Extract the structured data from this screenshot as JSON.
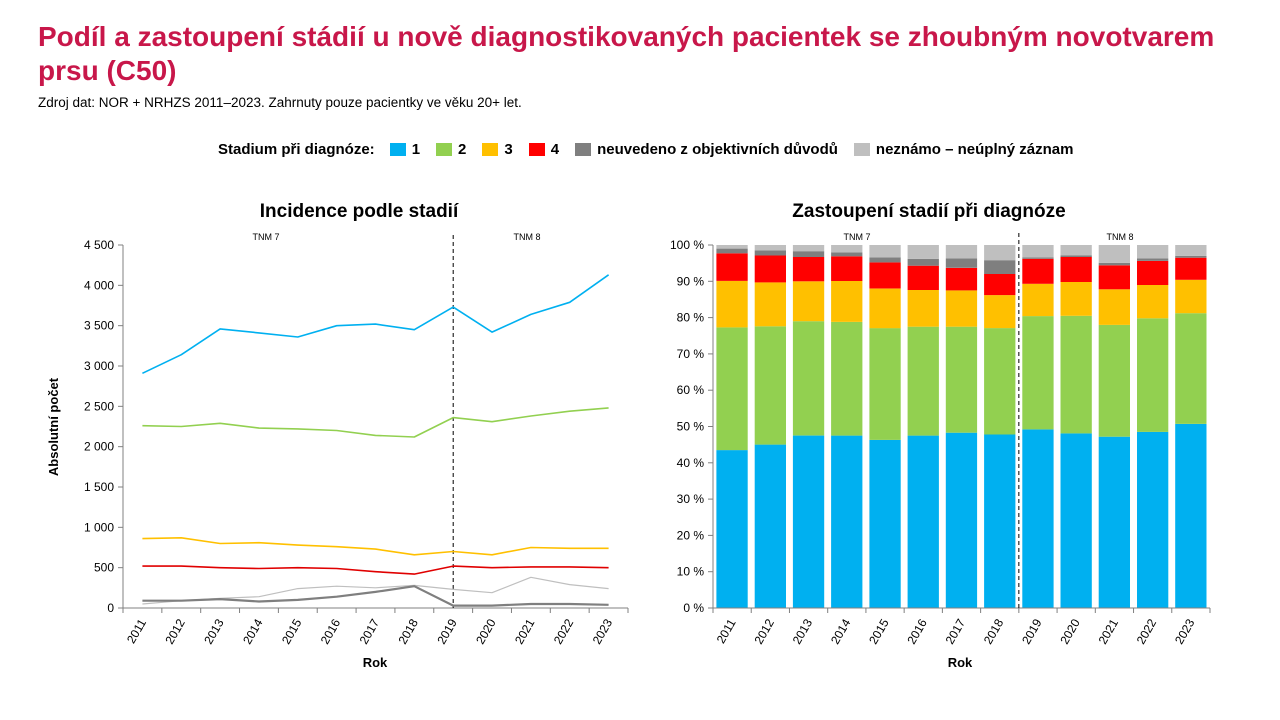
{
  "header": {
    "title": "Podíl a zastoupení stádií u nově diagnostikovaných pacientek se zhoubným novotvarem prsu (C50)",
    "subtitle": "Zdroj dat: NOR + NRHZS 2011–2023. Zahrnuty pouze pacientky ve věku 20+ let."
  },
  "legend": {
    "title": "Stadium při diagnóze:",
    "items": [
      {
        "label": "1",
        "color": "#00b0f0"
      },
      {
        "label": "2",
        "color": "#92d050"
      },
      {
        "label": "3",
        "color": "#ffc000"
      },
      {
        "label": "4",
        "color": "#ff0000"
      },
      {
        "label": "neuvedeno z objektivních důvodů",
        "color": "#7f7f7f"
      },
      {
        "label": "neznámo – neúplný záznam",
        "color": "#bfbfbf"
      }
    ]
  },
  "chart_data": [
    {
      "type": "line",
      "title": "Incidence podle stadií",
      "xlabel": "Rok",
      "ylabel": "Absolutní počet",
      "x": [
        "2011",
        "2012",
        "2013",
        "2014",
        "2015",
        "2016",
        "2017",
        "2018",
        "2019",
        "2020",
        "2021",
        "2022",
        "2023"
      ],
      "ylim": [
        0,
        4500
      ],
      "yticks": [
        0,
        500,
        1000,
        1500,
        2000,
        2500,
        3000,
        3500,
        4000,
        4500
      ],
      "ytick_labels": [
        "0",
        "500",
        "1 000",
        "1 500",
        "2 000",
        "2 500",
        "3 000",
        "3 500",
        "4 000",
        "4 500"
      ],
      "grid": false,
      "annotations": [
        "TNM 7",
        "TNM 8"
      ],
      "series": [
        {
          "name": "1",
          "color": "#00b0f0",
          "width": 1.6,
          "values": [
            2910,
            3140,
            3460,
            3410,
            3360,
            3500,
            3520,
            3450,
            3730,
            3420,
            3640,
            3790,
            4130
          ]
        },
        {
          "name": "2",
          "color": "#92d050",
          "width": 1.6,
          "values": [
            2260,
            2250,
            2290,
            2230,
            2220,
            2200,
            2140,
            2120,
            2360,
            2310,
            2380,
            2440,
            2480
          ]
        },
        {
          "name": "3",
          "color": "#ffc000",
          "width": 1.6,
          "values": [
            860,
            870,
            800,
            810,
            780,
            760,
            730,
            660,
            700,
            660,
            750,
            740,
            740
          ]
        },
        {
          "name": "4",
          "color": "#e00000",
          "width": 1.6,
          "values": [
            520,
            520,
            500,
            490,
            500,
            490,
            450,
            420,
            520,
            500,
            510,
            510,
            500
          ]
        },
        {
          "name": "neuvedeno z objektivních důvodů",
          "color": "#7f7f7f",
          "width": 2.2,
          "values": [
            90,
            90,
            110,
            80,
            100,
            140,
            200,
            270,
            30,
            30,
            50,
            50,
            40
          ]
        },
        {
          "name": "neznámo – neúplný záznam",
          "color": "#bfbfbf",
          "width": 1.2,
          "values": [
            50,
            90,
            120,
            140,
            240,
            270,
            250,
            280,
            230,
            190,
            380,
            290,
            240
          ]
        }
      ]
    },
    {
      "type": "bar",
      "stacked": true,
      "title": "Zastoupení stadií při diagnóze",
      "xlabel": "Rok",
      "ylabel": "",
      "categories": [
        "2011",
        "2012",
        "2013",
        "2014",
        "2015",
        "2016",
        "2017",
        "2018",
        "2019",
        "2020",
        "2021",
        "2022",
        "2023"
      ],
      "ylim": [
        0,
        100
      ],
      "yticks": [
        0,
        10,
        20,
        30,
        40,
        50,
        60,
        70,
        80,
        90,
        100
      ],
      "ytick_labels": [
        "0 %",
        "10 %",
        "20 %",
        "30 %",
        "40 %",
        "50 %",
        "60 %",
        "70 %",
        "80 %",
        "90 %",
        "100 %"
      ],
      "grid": false,
      "annotations": [
        "TNM 7",
        "TNM 8"
      ],
      "series": [
        {
          "name": "1",
          "color": "#00b0f0",
          "values": [
            43.5,
            45.0,
            47.5,
            47.5,
            46.3,
            47.5,
            48.3,
            47.8,
            49.2,
            48.1,
            47.2,
            48.5,
            50.7
          ]
        },
        {
          "name": "2",
          "color": "#92d050",
          "values": [
            33.8,
            32.6,
            31.5,
            31.3,
            30.8,
            30.0,
            29.2,
            29.3,
            31.2,
            32.4,
            30.8,
            31.3,
            30.5
          ]
        },
        {
          "name": "3",
          "color": "#ffc000",
          "values": [
            12.8,
            12.1,
            11.0,
            11.3,
            10.9,
            10.1,
            10.0,
            9.1,
            8.9,
            9.3,
            9.8,
            9.2,
            9.2
          ]
        },
        {
          "name": "4",
          "color": "#ff0000",
          "values": [
            7.6,
            7.4,
            6.7,
            6.8,
            7.2,
            6.7,
            6.2,
            5.8,
            6.9,
            6.9,
            6.6,
            6.6,
            6.1
          ]
        },
        {
          "name": "neuvedeno z objektivních důvodů",
          "color": "#7f7f7f",
          "values": [
            1.3,
            1.4,
            1.6,
            1.1,
            1.4,
            1.9,
            2.6,
            3.8,
            0.4,
            0.4,
            0.7,
            0.7,
            0.5
          ]
        },
        {
          "name": "neznámo – neúplný záznam",
          "color": "#bfbfbf",
          "values": [
            1.0,
            1.5,
            1.7,
            2.0,
            3.4,
            3.8,
            3.7,
            4.2,
            3.4,
            2.9,
            4.9,
            3.7,
            3.0
          ]
        }
      ]
    }
  ]
}
